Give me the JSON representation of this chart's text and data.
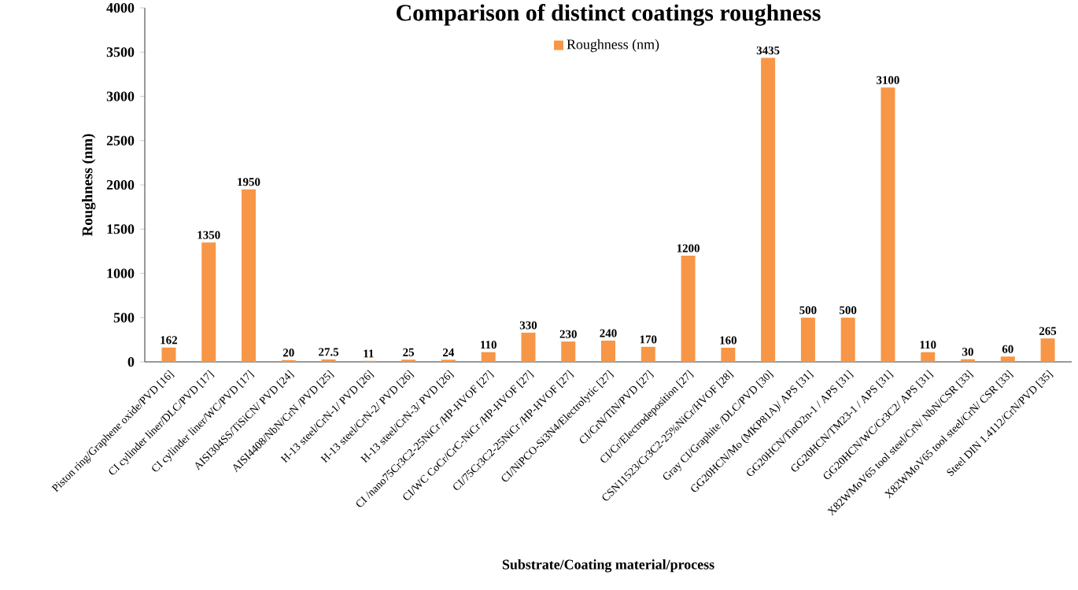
{
  "chart_data": {
    "type": "bar",
    "title": "Comparison of distinct coatings roughness",
    "xlabel": "Substrate/Coating material/process",
    "ylabel": "Roughness (nm)",
    "categories": [
      "Piston ring/Graphene oxide/PVD [16]",
      "CI cylinder liner/DLC/PVD [17]",
      "CI cylinder liner/WC/PVD [17]",
      "AISI304SS/TiSiCN/ PVD [24]",
      "AISI4408/NbN/CrN /PVD [25]",
      "H-13 steel/CrN-1/ PVD [26]",
      "H-13 steel/CrN-2/ PVD [26]",
      "H-13 steel/CrN-3/ PVD [26]",
      "CI /nano75Cr3C2-25NiCr /HP-HVOF [27]",
      "CI/WC CoCr/CrC-NiCr /HP-HVOF [27]",
      "CI/75Cr3C2-25NiCr /HP-HVOF [27]",
      "CI/NiPCO-Si3N4/Electrolytic [27]",
      "CI/CrN/TiN/PVD [27]",
      "CI/Cr/Electrodeposition [27]",
      "CSN11523/Cr3C2-25%NiCr/HVOF [28]",
      "Gray CI/Graphite /DLC/PVD [30]",
      "GG20HCN/Mo (MKP81A)/ APS [31]",
      "GG20HCN/TinO2n-1 / APS [31]",
      "GG20HCN/TM23-1 / APS [31]",
      "GG20HCN/WC/Cr3C2/ APS [31]",
      "X82WMoV65 tool steel/CrN/ NbN/CSR [33]",
      "X82WMoV65 tool steel/CrN/ CSR [33]",
      "Steel DIN 1.4112/CrN/PVD [35]"
    ],
    "series": [
      {
        "name": "Roughness (nm)",
        "color": "#f79646",
        "values": [
          162,
          1350,
          1950,
          20,
          27.5,
          11,
          25,
          24,
          110,
          330,
          230,
          240,
          170,
          1200,
          160,
          3435,
          500,
          500,
          3100,
          110,
          30,
          60,
          265
        ]
      }
    ],
    "ylim": [
      0,
      4000
    ],
    "yticks": [
      0,
      500,
      1000,
      1500,
      2000,
      2500,
      3000,
      3500,
      4000
    ],
    "data_labels": true,
    "legend": "top"
  }
}
